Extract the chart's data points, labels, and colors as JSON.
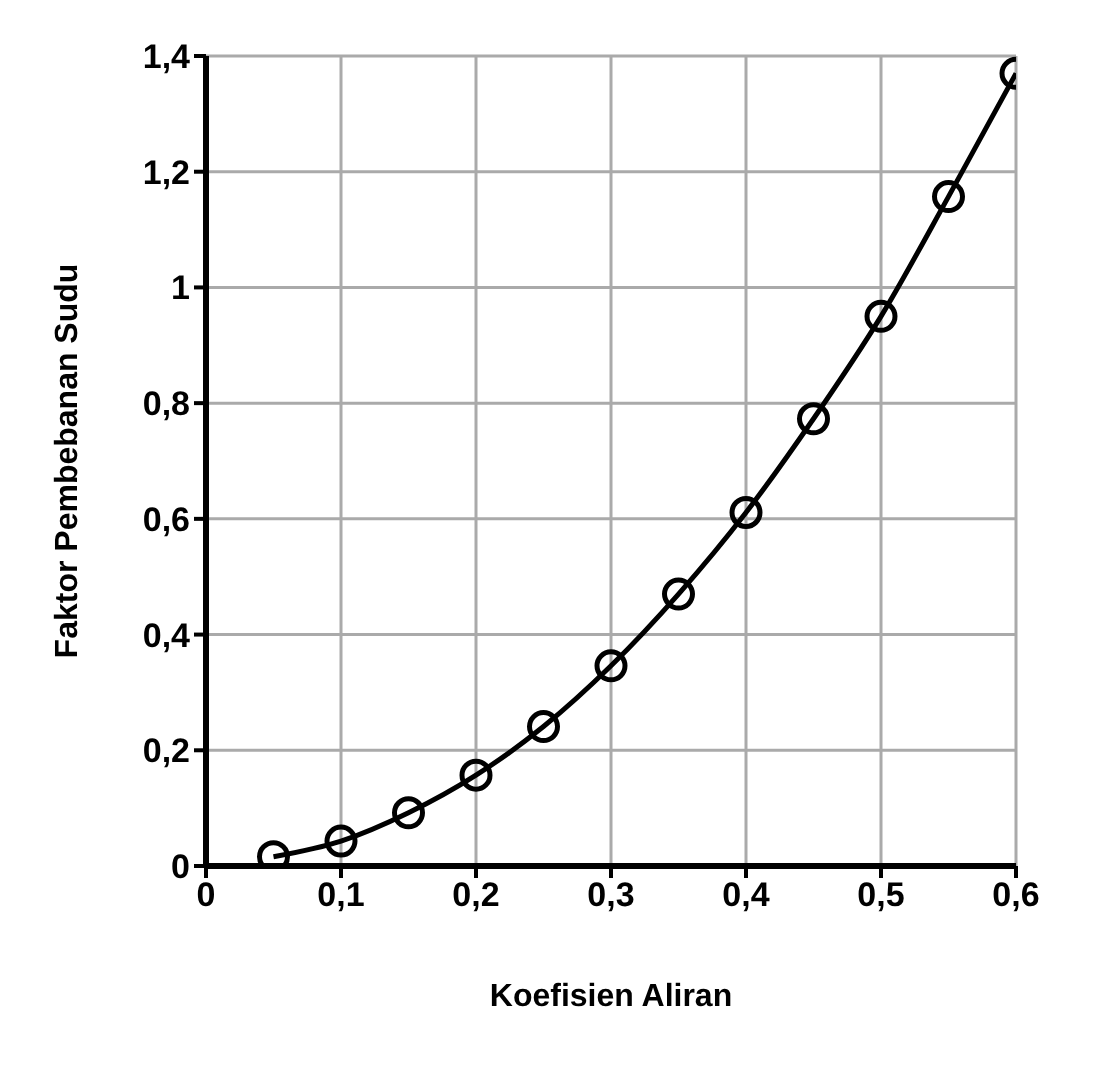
{
  "chart_data": {
    "type": "line",
    "xlabel": "Koefisien Aliran",
    "ylabel": "Faktor Pembebanan Sudu",
    "x": [
      0.05,
      0.1,
      0.15,
      0.2,
      0.25,
      0.3,
      0.35,
      0.4,
      0.45,
      0.5,
      0.55,
      0.6
    ],
    "series": [
      {
        "color": "#000000",
        "values": [
          0.016,
          0.043,
          0.092,
          0.157,
          0.241,
          0.346,
          0.47,
          0.611,
          0.773,
          0.95,
          1.157,
          1.37
        ]
      }
    ],
    "xlim": [
      0,
      0.6
    ],
    "xticks": [
      0,
      {
        "value": 0.1,
        "label": "0,1"
      },
      {
        "value": 0.2,
        "label": "0,2"
      },
      {
        "value": 0.3,
        "label": "0,3"
      },
      {
        "value": 0.4,
        "label": "0,4"
      },
      {
        "value": 0.5,
        "label": "0,5"
      },
      {
        "value": 0.6,
        "label": "0,6"
      }
    ],
    "ylim": [
      0,
      1.4
    ],
    "yticks": [
      0,
      {
        "value": 0.2,
        "label": "0,2"
      },
      {
        "value": 0.4,
        "label": "0,4"
      },
      {
        "value": 0.6,
        "label": "0,6"
      },
      {
        "value": 0.8,
        "label": "0,8"
      },
      1,
      {
        "value": 1.2,
        "label": "1,2"
      },
      {
        "value": 1.4,
        "label": "1,4"
      }
    ],
    "grid": true,
    "marker": "circle",
    "line_style": "solid",
    "legend": false
  }
}
